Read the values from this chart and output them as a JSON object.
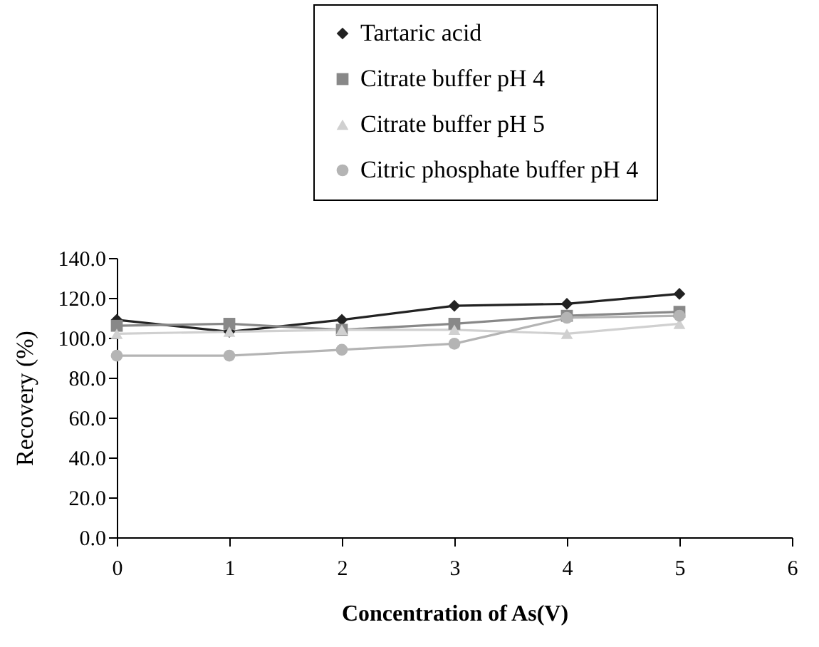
{
  "chart_data": {
    "type": "line",
    "xlabel": "Concentration of As(V)",
    "ylabel": "Recovery (%)",
    "x": [
      0,
      1,
      2,
      3,
      4,
      5
    ],
    "series": [
      {
        "name": "Tartaric acid",
        "color": "#222222",
        "marker": "diamond",
        "values": [
          109,
          103,
          109,
          116,
          117,
          122
        ]
      },
      {
        "name": "Citrate buffer pH 4",
        "color": "#888888",
        "marker": "square",
        "values": [
          106,
          107,
          104,
          107,
          111,
          113
        ]
      },
      {
        "name": "Citrate buffer pH 5",
        "color": "#d0d0d0",
        "marker": "triangle",
        "values": [
          102,
          103,
          104,
          104,
          102,
          107
        ]
      },
      {
        "name": "Citric phosphate buffer pH 4",
        "color": "#b4b4b4",
        "marker": "circle",
        "values": [
          91,
          91,
          94,
          97,
          110,
          111
        ]
      }
    ],
    "xlim": [
      0,
      6
    ],
    "xticks": [
      0,
      1,
      2,
      3,
      4,
      5,
      6
    ],
    "ylim": [
      0,
      140
    ],
    "yticks": [
      {
        "value": 0,
        "label": "0.0"
      },
      {
        "value": 20,
        "label": "20.0"
      },
      {
        "value": 40,
        "label": "40.0"
      },
      {
        "value": 60,
        "label": "60.0"
      },
      {
        "value": 80,
        "label": "80.0"
      },
      {
        "value": 100,
        "label": "100.0"
      },
      {
        "value": 120,
        "label": "120.0"
      },
      {
        "value": 140,
        "label": "140.0"
      }
    ],
    "grid": false,
    "legend": "top right",
    "line_style": "solid"
  }
}
